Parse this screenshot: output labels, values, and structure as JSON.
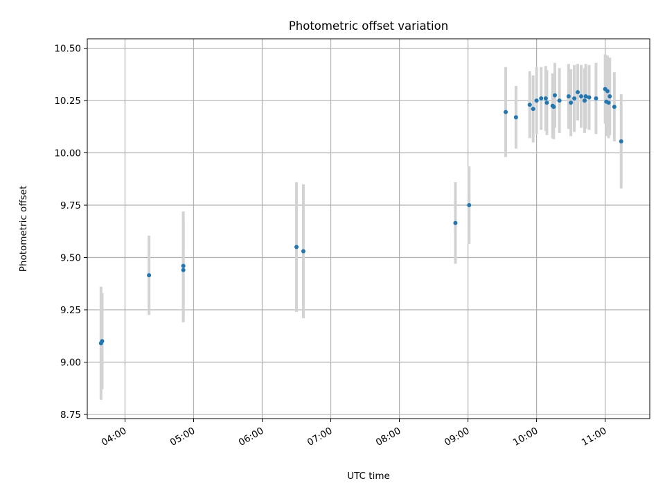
{
  "chart_data": {
    "type": "scatter",
    "title": "Photometric offset variation",
    "xlabel": "UTC time",
    "ylabel": "Photometric offset",
    "x_axis_kind": "time",
    "x_ticks": [
      "04:00",
      "05:00",
      "06:00",
      "07:00",
      "08:00",
      "09:00",
      "10:00",
      "11:00"
    ],
    "y_ticks": [
      "8.75",
      "9.00",
      "9.25",
      "9.50",
      "9.75",
      "10.00",
      "10.25",
      "10.50"
    ],
    "xlim": [
      "03:27",
      "11:39"
    ],
    "ylim": [
      8.73,
      10.545
    ],
    "grid": true,
    "colors": {
      "point": "#1f77b4",
      "errorbar": "#d3d3d3",
      "grid": "#b0b0b0"
    },
    "points": [
      {
        "x": "03:39",
        "y": 9.09,
        "err": 0.27
      },
      {
        "x": "03:40",
        "y": 9.1,
        "err": 0.23
      },
      {
        "x": "04:21",
        "y": 9.415,
        "err": 0.19
      },
      {
        "x": "04:51",
        "y": 9.46,
        "err": 0.26
      },
      {
        "x": "04:51",
        "y": 9.44,
        "err": 0.25
      },
      {
        "x": "06:30",
        "y": 9.55,
        "err": 0.31
      },
      {
        "x": "06:36",
        "y": 9.53,
        "err": 0.32
      },
      {
        "x": "08:49",
        "y": 9.665,
        "err": 0.195
      },
      {
        "x": "09:01",
        "y": 9.75,
        "err": 0.185
      },
      {
        "x": "09:33",
        "y": 10.195,
        "err": 0.215
      },
      {
        "x": "09:42",
        "y": 10.17,
        "err": 0.15
      },
      {
        "x": "09:54",
        "y": 10.23,
        "err": 0.16
      },
      {
        "x": "09:57",
        "y": 10.21,
        "err": 0.16
      },
      {
        "x": "10:00",
        "y": 10.25,
        "err": 0.16
      },
      {
        "x": "10:04",
        "y": 10.26,
        "err": 0.15
      },
      {
        "x": "10:08",
        "y": 10.26,
        "err": 0.155
      },
      {
        "x": "10:09",
        "y": 10.24,
        "err": 0.155
      },
      {
        "x": "10:14",
        "y": 10.225,
        "err": 0.155
      },
      {
        "x": "10:15",
        "y": 10.22,
        "err": 0.155
      },
      {
        "x": "10:16",
        "y": 10.275,
        "err": 0.155
      },
      {
        "x": "10:20",
        "y": 10.25,
        "err": 0.155
      },
      {
        "x": "10:28",
        "y": 10.27,
        "err": 0.155
      },
      {
        "x": "10:30",
        "y": 10.24,
        "err": 0.16
      },
      {
        "x": "10:33",
        "y": 10.26,
        "err": 0.16
      },
      {
        "x": "10:36",
        "y": 10.29,
        "err": 0.135
      },
      {
        "x": "10:39",
        "y": 10.27,
        "err": 0.15
      },
      {
        "x": "10:42",
        "y": 10.25,
        "err": 0.155
      },
      {
        "x": "10:43",
        "y": 10.27,
        "err": 0.155
      },
      {
        "x": "10:46",
        "y": 10.265,
        "err": 0.155
      },
      {
        "x": "10:52",
        "y": 10.26,
        "err": 0.17
      },
      {
        "x": "11:00",
        "y": 10.305,
        "err": 0.165
      },
      {
        "x": "11:01",
        "y": 10.245,
        "err": 0.165
      },
      {
        "x": "11:02",
        "y": 10.295,
        "err": 0.17
      },
      {
        "x": "11:03",
        "y": 10.24,
        "err": 0.17
      },
      {
        "x": "11:04",
        "y": 10.27,
        "err": 0.185
      },
      {
        "x": "11:08",
        "y": 10.22,
        "err": 0.165
      },
      {
        "x": "11:14",
        "y": 10.055,
        "err": 0.225
      }
    ]
  }
}
